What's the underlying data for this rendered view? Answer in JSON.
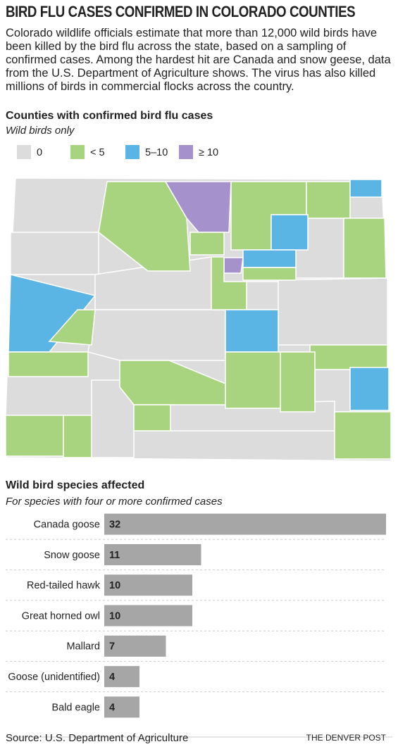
{
  "header": {
    "title": "BIRD FLU CASES CONFIRMED IN COLORADO COUNTIES",
    "description": "Colorado wildlife officials estimate that more than 12,000 wild birds have been killed by the bird flu across the state, based on a sampling of confirmed cases. Among the hardest hit are Canada and snow geese, data from the U.S. Department of Agriculture shows. The virus has also killed millions of birds in commercial flocks across the country."
  },
  "map": {
    "title": "Counties with confirmed bird flu cases",
    "subtitle": "Wild birds only",
    "legend": [
      {
        "label": "0",
        "color": "#dcdcdc"
      },
      {
        "label": "< 5",
        "color": "#a9d47f"
      },
      {
        "label": "5–10",
        "color": "#5ab4e4"
      },
      {
        "label": "≥ 10",
        "color": "#a592cc"
      }
    ]
  },
  "chart_data": {
    "type": "bar",
    "title": "Wild bird species affected",
    "subtitle": "For species with four or more confirmed cases",
    "categories": [
      "Canada goose",
      "Snow goose",
      "Red-tailed hawk",
      "Great horned owl",
      "Mallard",
      "Goose (unidentified)",
      "Bald eagle"
    ],
    "values": [
      32,
      11,
      10,
      10,
      7,
      4,
      4
    ],
    "color": "#a6a6a6",
    "xlim": [
      0,
      32
    ]
  },
  "footer": {
    "source": "Source: U.S. Department of Agriculture",
    "credit": "THE DENVER POST"
  }
}
